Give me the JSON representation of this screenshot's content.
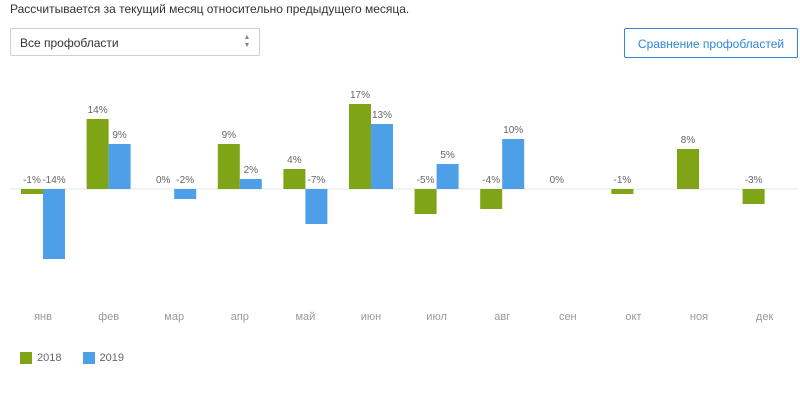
{
  "header": {
    "subtitle": "Рассчитывается за текущий месяц относительно предыдущего месяца."
  },
  "filter": {
    "selected": "Все профобласти"
  },
  "toolbar": {
    "compare_label": "Сравнение профобластей"
  },
  "colors": {
    "series_2018": "#7fa516",
    "series_2019": "#4d9fe8",
    "baseline": "#e5e5e5",
    "accent": "#2f86d6"
  },
  "chart_data": {
    "type": "bar",
    "categories": [
      "янв",
      "фев",
      "мар",
      "апр",
      "май",
      "июн",
      "июл",
      "авг",
      "сен",
      "окт",
      "ноя",
      "дек"
    ],
    "series": [
      {
        "name": "2018",
        "values": [
          -1,
          14,
          0,
          9,
          4,
          17,
          -5,
          -4,
          0,
          -1,
          8,
          -3
        ],
        "labels": [
          "-1%",
          "14%",
          "0%",
          "9%",
          "4%",
          "17%",
          "-5%",
          "-4%",
          "0%",
          "-1%",
          "8%",
          "-3%"
        ]
      },
      {
        "name": "2019",
        "values": [
          -14,
          9,
          -2,
          2,
          -7,
          13,
          5,
          10,
          null,
          null,
          null,
          null
        ],
        "labels": [
          "-14%",
          "9%",
          "-2%",
          "2%",
          "-7%",
          "13%",
          "5%",
          "10%",
          null,
          null,
          null,
          null
        ]
      }
    ],
    "legend_position": "bottom-left",
    "grid": false,
    "ylim": [
      -15,
      18
    ]
  }
}
